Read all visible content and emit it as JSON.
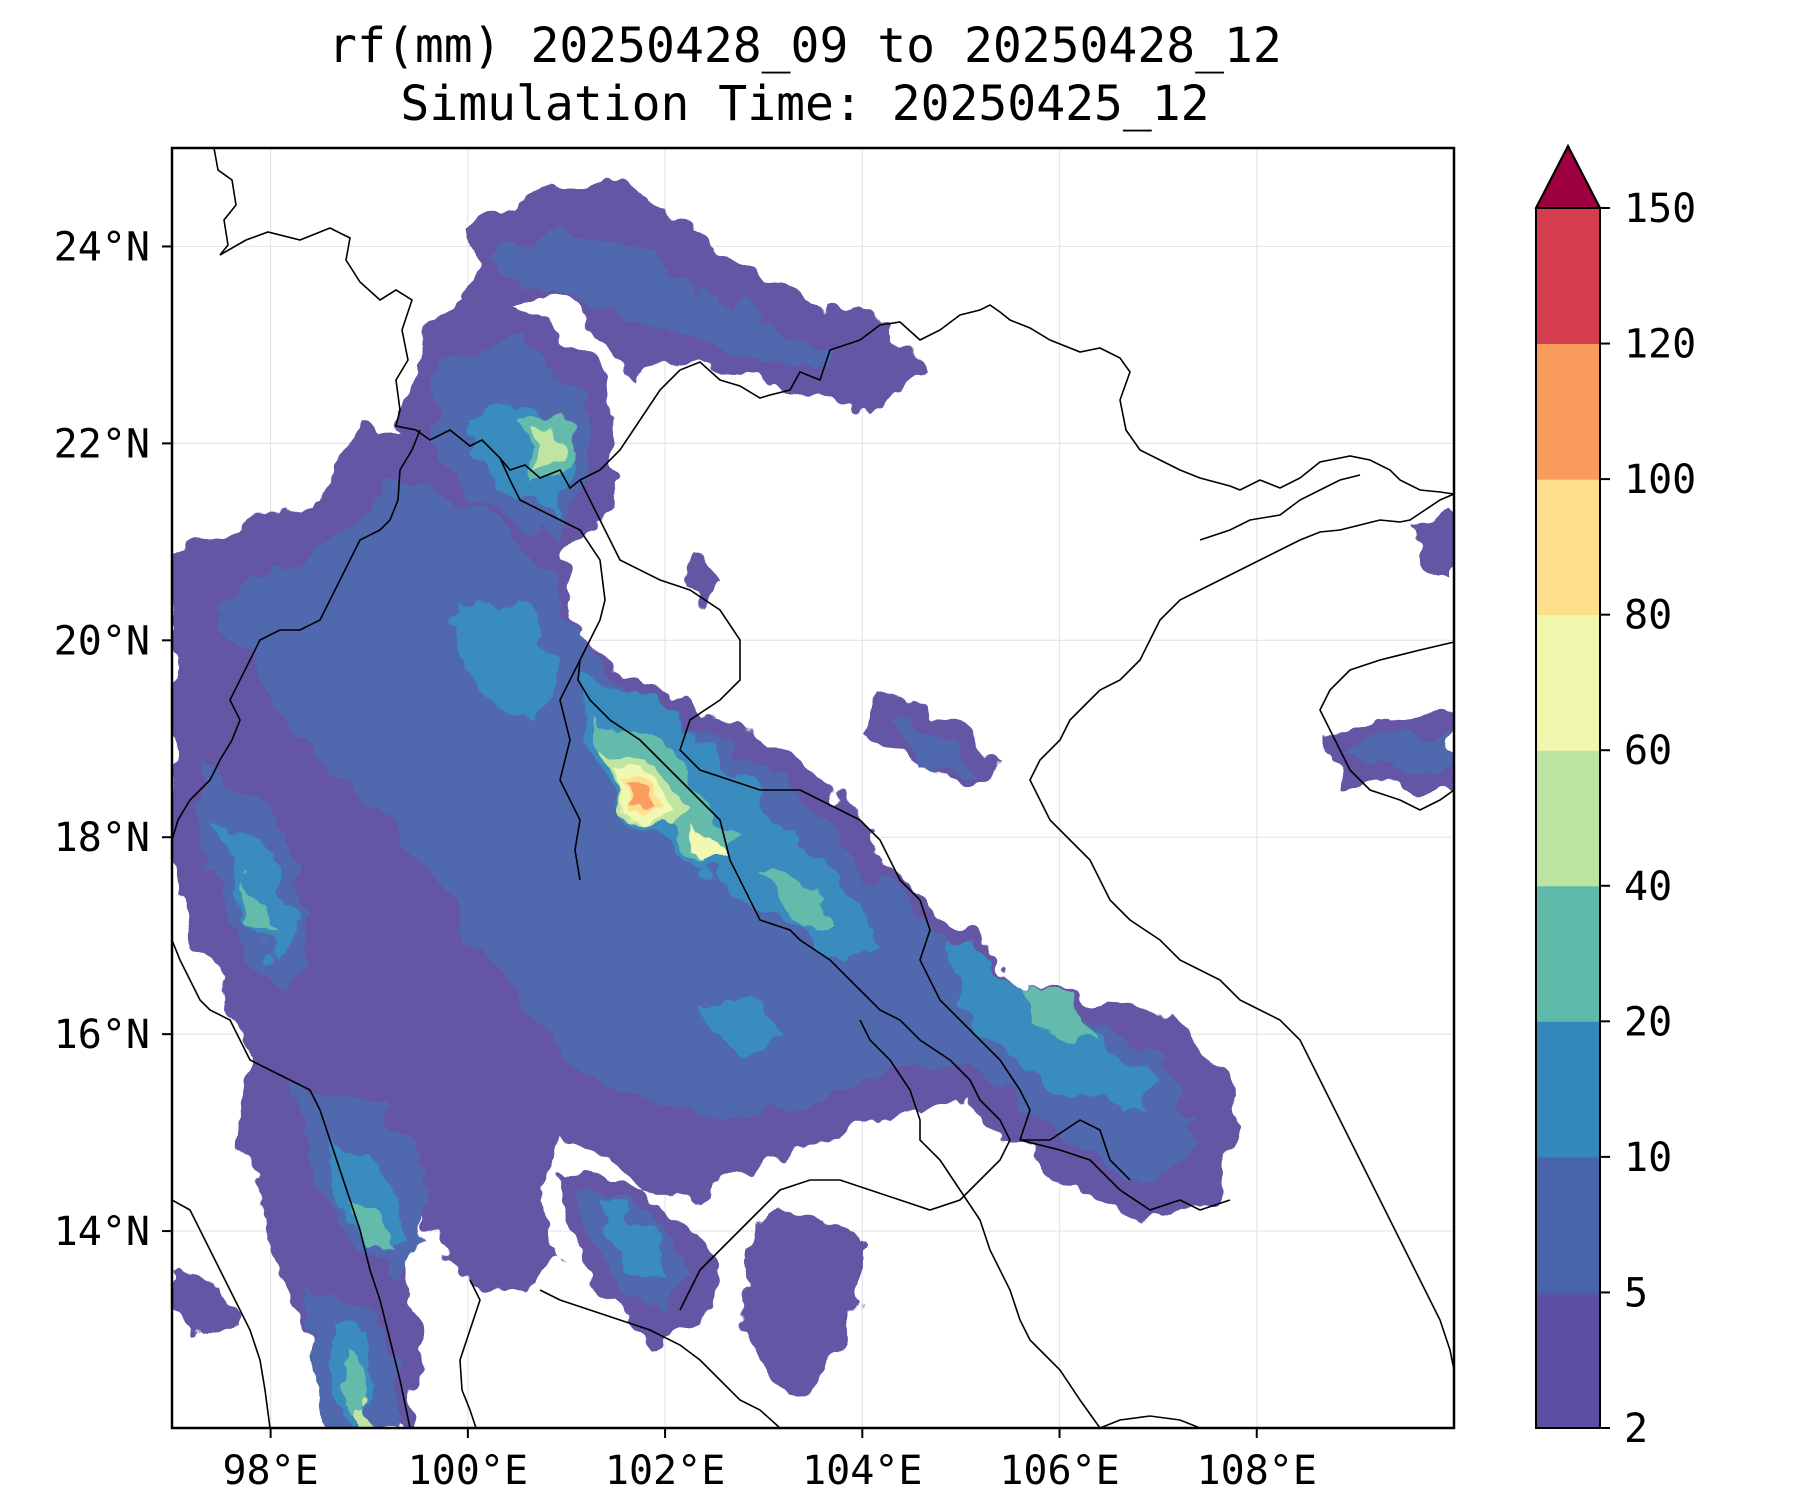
{
  "title": "rf(mm) 20250428_09 to 20250428_12",
  "subtitle": "Simulation Time: 20250425_12",
  "map": {
    "lon_range": [
      97.0,
      110.0
    ],
    "lat_range": [
      12.0,
      25.0
    ],
    "gridlines": true,
    "lon_ticks": [
      {
        "value": 98,
        "label": "98°E"
      },
      {
        "value": 100,
        "label": "100°E"
      },
      {
        "value": 102,
        "label": "102°E"
      },
      {
        "value": 104,
        "label": "104°E"
      },
      {
        "value": 106,
        "label": "106°E"
      },
      {
        "value": 108,
        "label": "108°E"
      }
    ],
    "lat_ticks": [
      {
        "value": 24,
        "label": "24°N"
      },
      {
        "value": 22,
        "label": "22°N"
      },
      {
        "value": 20,
        "label": "20°N"
      },
      {
        "value": 18,
        "label": "18°N"
      },
      {
        "value": 16,
        "label": "16°N"
      },
      {
        "value": 14,
        "label": "14°N"
      }
    ]
  },
  "colorbar": {
    "extend": "max",
    "levels": [
      {
        "label": "2",
        "color": "#5e4fa2"
      },
      {
        "label": "5",
        "color": "#4863ab"
      },
      {
        "label": "10",
        "color": "#3288bd"
      },
      {
        "label": "20",
        "color": "#5eb9a8"
      },
      {
        "label": "40",
        "color": "#bde4a0"
      },
      {
        "label": "60",
        "color": "#f0f8ae"
      },
      {
        "label": "80",
        "color": "#fdde8b"
      },
      {
        "label": "100",
        "color": "#f99b5a"
      },
      {
        "label": "120",
        "color": "#d53e4f"
      },
      {
        "label": "150",
        "color": "#9e0142"
      }
    ]
  }
}
